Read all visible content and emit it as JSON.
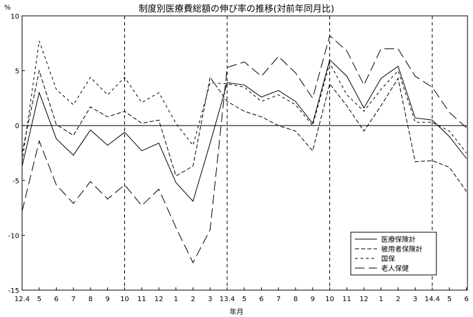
{
  "chart_data": {
    "type": "line",
    "title": "制度別医療費総額の伸び率の推移(対前年同月比)",
    "ylabel": "%",
    "xlabel": "年月",
    "ylim": [
      -15,
      10
    ],
    "yticks": [
      10,
      5,
      0,
      -5,
      -10,
      -15
    ],
    "x_tick_labels": [
      "12.4",
      "5",
      "6",
      "7",
      "8",
      "9",
      "10",
      "11",
      "12",
      "1",
      "2",
      "3",
      "13.4",
      "5",
      "6",
      "7",
      "8",
      "9",
      "10",
      "11",
      "12",
      "1",
      "2",
      "3",
      "14.4",
      "5",
      "6"
    ],
    "grid": false,
    "legend_position": "bottom-right",
    "reference_lines": {
      "y": 0,
      "x_categories": [
        "10",
        "13.4",
        "10",
        "14.4"
      ]
    },
    "series": [
      {
        "name": "医療保険計",
        "dash": "solid",
        "values": [
          -3.7,
          3.0,
          -1.2,
          -2.7,
          -0.4,
          -1.8,
          -0.6,
          -2.3,
          -1.6,
          -5.2,
          -6.9,
          -1.6,
          3.9,
          3.7,
          2.6,
          3.2,
          2.2,
          0.2,
          6.0,
          4.5,
          1.6,
          4.3,
          5.4,
          0.7,
          0.5,
          -1.0,
          -3.0
        ]
      },
      {
        "name": "被用者保険計",
        "dash": "medium",
        "values": [
          -2.5,
          5.0,
          0.1,
          -0.9,
          1.7,
          0.8,
          1.3,
          0.2,
          0.5,
          -4.6,
          -3.7,
          4.4,
          2.2,
          1.3,
          0.8,
          0.0,
          -0.5,
          -2.3,
          3.8,
          1.8,
          -0.5,
          1.8,
          4.3,
          -3.3,
          -3.2,
          -3.8,
          -6.0
        ]
      },
      {
        "name": "国保",
        "dash": "short",
        "values": [
          -3.3,
          7.7,
          3.3,
          1.9,
          4.4,
          2.8,
          4.4,
          2.1,
          3.0,
          0.2,
          -1.8,
          3.9,
          3.8,
          3.5,
          2.2,
          2.8,
          1.9,
          0.0,
          5.7,
          2.8,
          1.3,
          3.3,
          5.0,
          0.3,
          0.3,
          -0.5,
          -2.5
        ]
      },
      {
        "name": "老人保健",
        "dash": "long",
        "values": [
          -7.8,
          -1.4,
          -5.4,
          -7.1,
          -5.1,
          -6.7,
          -5.4,
          -7.3,
          -5.8,
          -9.3,
          -12.5,
          -9.5,
          5.3,
          5.8,
          4.5,
          6.3,
          4.8,
          2.5,
          8.2,
          6.8,
          3.7,
          7.0,
          7.0,
          4.5,
          3.5,
          1.2,
          -0.2
        ]
      }
    ]
  }
}
